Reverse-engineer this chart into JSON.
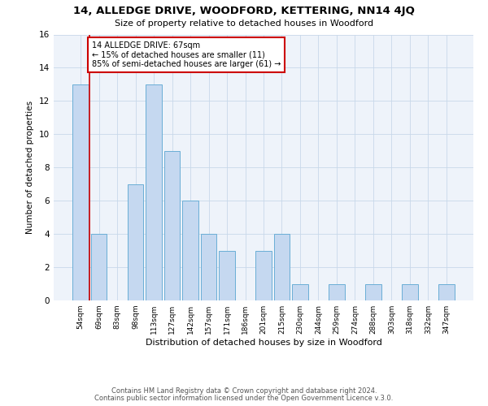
{
  "title": "14, ALLEDGE DRIVE, WOODFORD, KETTERING, NN14 4JQ",
  "subtitle": "Size of property relative to detached houses in Woodford",
  "xlabel": "Distribution of detached houses by size in Woodford",
  "ylabel": "Number of detached properties",
  "bar_color": "#c5d8f0",
  "bar_edge_color": "#6aaed6",
  "categories": [
    "54sqm",
    "69sqm",
    "83sqm",
    "98sqm",
    "113sqm",
    "127sqm",
    "142sqm",
    "157sqm",
    "171sqm",
    "186sqm",
    "201sqm",
    "215sqm",
    "230sqm",
    "244sqm",
    "259sqm",
    "274sqm",
    "288sqm",
    "303sqm",
    "318sqm",
    "332sqm",
    "347sqm"
  ],
  "values": [
    13,
    4,
    0,
    7,
    13,
    9,
    6,
    4,
    3,
    0,
    3,
    4,
    1,
    0,
    1,
    0,
    1,
    0,
    1,
    0,
    1
  ],
  "ylim": [
    0,
    16
  ],
  "yticks": [
    0,
    2,
    4,
    6,
    8,
    10,
    12,
    14,
    16
  ],
  "annotation_line1": "14 ALLEDGE DRIVE: 67sqm",
  "annotation_line2": "← 15% of detached houses are smaller (11)",
  "annotation_line3": "85% of semi-detached houses are larger (61) →",
  "annotation_box_color": "#ffffff",
  "annotation_box_edge_color": "#cc0000",
  "red_line_color": "#cc0000",
  "footer_line1": "Contains HM Land Registry data © Crown copyright and database right 2024.",
  "footer_line2": "Contains public sector information licensed under the Open Government Licence v.3.0.",
  "background_color": "#ffffff",
  "grid_color": "#c8d8ea",
  "axes_bg_color": "#eef3fa"
}
